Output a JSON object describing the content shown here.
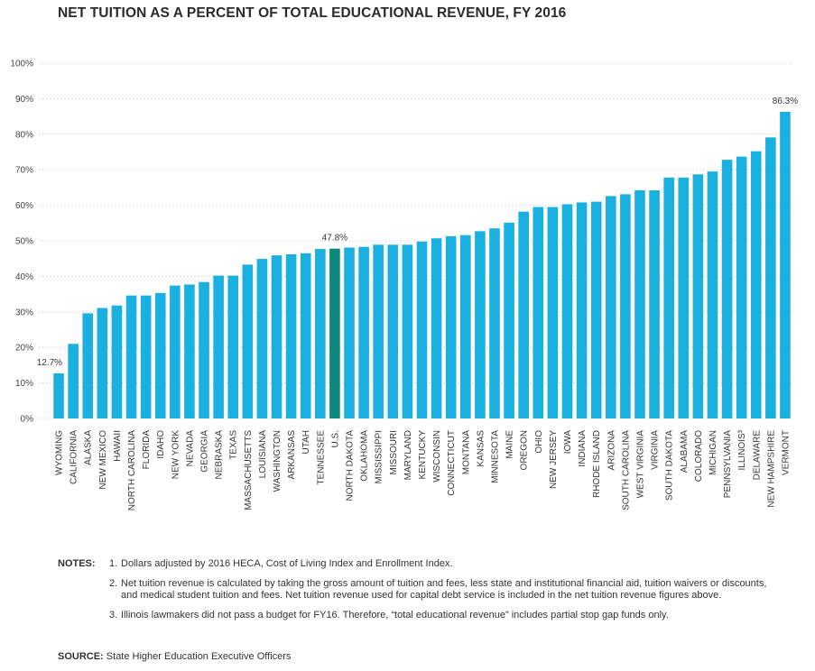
{
  "chart_data": {
    "type": "bar",
    "title": "NET TUITION AS A PERCENT OF TOTAL EDUCATIONAL REVENUE, FY 2016",
    "ylim": [
      0,
      100
    ],
    "yticks": [
      "0%",
      "10%",
      "20%",
      "30%",
      "40%",
      "50%",
      "60%",
      "70%",
      "80%",
      "90%",
      "100%"
    ],
    "grid": true,
    "categories": [
      "WYOMING",
      "CALIFORNIA",
      "ALASKA",
      "NEW MEXICO",
      "HAWAII",
      "NORTH CAROLINA",
      "FLORIDA",
      "IDAHO",
      "NEW YORK",
      "NEVADA",
      "GEORGIA",
      "NEBRASKA",
      "TEXAS",
      "MASSACHUSETTS",
      "LOUISIANA",
      "WASHINGTON",
      "ARKANSAS",
      "UTAH",
      "TENNESSEE",
      "U.S.",
      "NORTH DAKOTA",
      "OKLAHOMA",
      "MISSISSIPPI",
      "MISSOURI",
      "MARYLAND",
      "KENTUCKY",
      "WISCONSIN",
      "CONNECTICUT",
      "MONTANA",
      "KANSAS",
      "MINNESOTA",
      "MAINE",
      "OREGON",
      "OHIO",
      "NEW JERSEY",
      "IOWA",
      "INDIANA",
      "RHODE ISLAND",
      "ARIZONA",
      "SOUTH CAROLINA",
      "WEST VIRGINIA",
      "VIRGINIA",
      "SOUTH DAKOTA",
      "ALABAMA",
      "COLORADO",
      "MICHIGAN",
      "PENNSYLVANIA",
      "ILLINOIS³",
      "DELAWARE",
      "NEW HAMPSHIRE",
      "VERMONT"
    ],
    "values": [
      12.7,
      21.0,
      29.6,
      31.1,
      31.8,
      34.6,
      34.6,
      35.3,
      37.4,
      37.7,
      38.4,
      40.2,
      40.2,
      43.3,
      44.9,
      45.9,
      46.2,
      46.5,
      47.7,
      47.8,
      48.1,
      48.3,
      48.9,
      48.9,
      48.9,
      49.8,
      50.7,
      51.3,
      51.6,
      52.7,
      53.5,
      55.1,
      58.2,
      59.5,
      59.5,
      60.3,
      60.8,
      61.0,
      62.6,
      63.1,
      64.2,
      64.2,
      67.8,
      67.8,
      68.7,
      69.5,
      72.8,
      73.7,
      75.2,
      79.1,
      86.3
    ],
    "highlight": {
      "category": "U.S.",
      "color": "#0b8a7c"
    },
    "bar_color": "#1ab0e0",
    "data_labels": [
      {
        "category": "WYOMING",
        "text": "12.7%"
      },
      {
        "category": "U.S.",
        "text": "47.8%"
      },
      {
        "category": "VERMONT",
        "text": "86.3%"
      }
    ]
  },
  "notes": {
    "label": "NOTES:",
    "items": [
      {
        "num": "1.",
        "text": "Dollars adjusted by 2016 HECA, Cost of Living Index and Enrollment Index."
      },
      {
        "num": "2.",
        "text": "Net tuition revenue is calculated by taking the gross amount of tuition and fees, less state and institutional financial aid, tuition waivers or discounts, and medical student tuition and fees. Net tuition revenue used for capital debt service is included in the net tuition revenue figures above."
      },
      {
        "num": "3.",
        "text": "Illinois lawmakers did not pass a budget for FY16. Therefore, “total educational revenue” includes partial stop gap funds only."
      }
    ]
  },
  "source": {
    "label": "SOURCE:",
    "text": "State Higher Education Executive Officers"
  }
}
